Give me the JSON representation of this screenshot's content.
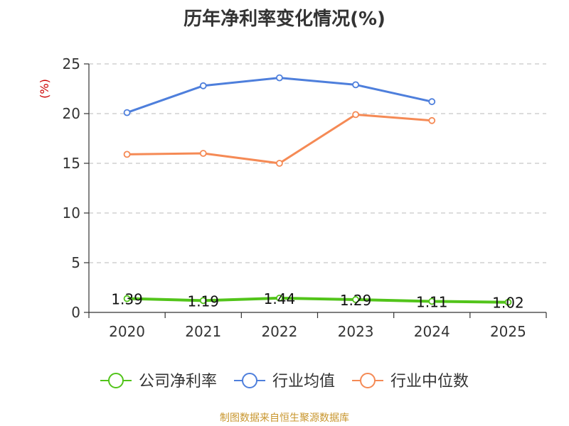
{
  "chart_data": {
    "type": "line",
    "title": "历年净利率变化情况(%)",
    "ylabel": "(%)",
    "categories": [
      "2020",
      "2021",
      "2022",
      "2023",
      "2024",
      "2025"
    ],
    "ylim": [
      0,
      25
    ],
    "yticks": [
      0,
      5,
      10,
      15,
      20,
      25
    ],
    "grid": true,
    "legend_position": "bottom",
    "series": [
      {
        "name": "公司净利率",
        "color": "#52c41a",
        "values": [
          1.39,
          1.19,
          1.44,
          1.29,
          1.11,
          1.02
        ],
        "labels": [
          "1.39",
          "1.19",
          "1.44",
          "1.29",
          "1.11",
          "1.02"
        ]
      },
      {
        "name": "行业均值",
        "color": "#4e7fdc",
        "values": [
          20.1,
          22.8,
          23.6,
          22.9,
          21.2,
          null
        ]
      },
      {
        "name": "行业中位数",
        "color": "#f58a55",
        "values": [
          15.9,
          16.0,
          15.0,
          19.9,
          19.3,
          null
        ]
      }
    ]
  },
  "footer": {
    "source": "制图数据来自恒生聚源数据库",
    "color": "#c8962e"
  },
  "colors": {
    "ylabel": "#cc0000",
    "grid": "#c8c8c8",
    "axis": "#333333"
  }
}
